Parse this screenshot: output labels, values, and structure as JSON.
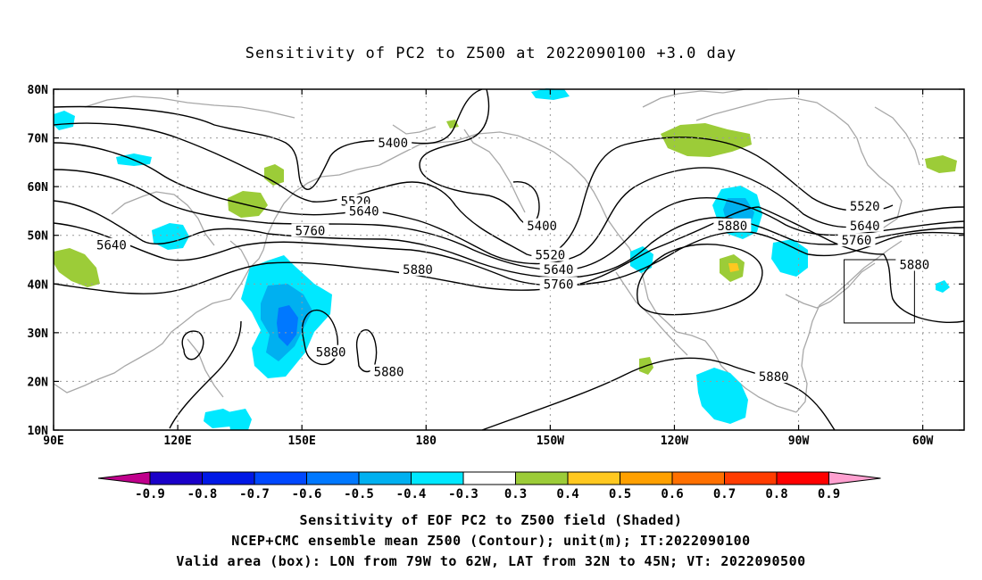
{
  "title": "Sensitivity of PC2 to Z500 at 2022090100 +3.0 day",
  "lat_labels": [
    "80N",
    "70N",
    "60N",
    "50N",
    "40N",
    "30N",
    "20N",
    "10N"
  ],
  "lon_labels": [
    "90E",
    "120E",
    "150E",
    "180",
    "150W",
    "120W",
    "90W",
    "60W"
  ],
  "contour_labels": [
    {
      "text": "5400",
      "lon": 172,
      "lat": 69
    },
    {
      "text": "5400",
      "lon": -152,
      "lat": 52
    },
    {
      "text": "5520",
      "lon": 163,
      "lat": 57
    },
    {
      "text": "5640",
      "lon": 165,
      "lat": 55
    },
    {
      "text": "5640",
      "lon": 104,
      "lat": 48
    },
    {
      "text": "5760",
      "lon": 152,
      "lat": 51
    },
    {
      "text": "5880",
      "lon": 178,
      "lat": 43
    },
    {
      "text": "5520",
      "lon": -150,
      "lat": 46
    },
    {
      "text": "5640",
      "lon": -148,
      "lat": 43
    },
    {
      "text": "5760",
      "lon": -148,
      "lat": 40
    },
    {
      "text": "5880",
      "lon": -106,
      "lat": 52
    },
    {
      "text": "5520",
      "lon": -74,
      "lat": 56
    },
    {
      "text": "5640",
      "lon": -74,
      "lat": 52
    },
    {
      "text": "5760",
      "lon": -76,
      "lat": 49
    },
    {
      "text": "5880",
      "lon": -62,
      "lat": 44
    },
    {
      "text": "5880",
      "lon": 157,
      "lat": 26
    },
    {
      "text": "5880",
      "lon": 171,
      "lat": 22
    },
    {
      "text": "5880",
      "lon": -96,
      "lat": 21
    }
  ],
  "valid_box": {
    "lon_min": -79,
    "lon_max": -62,
    "lat_min": 32,
    "lat_max": 45
  },
  "colorbar": {
    "labels": [
      "-0.9",
      "-0.8",
      "-0.7",
      "-0.6",
      "-0.5",
      "-0.4",
      "-0.3",
      "0.3",
      "0.4",
      "0.5",
      "0.6",
      "0.7",
      "0.8",
      "0.9"
    ],
    "colors": [
      "#1a00c8",
      "#0018e6",
      "#0048ff",
      "#0078ff",
      "#00b0f0",
      "#00e8ff",
      "#ffffff",
      "#9ccc38",
      "#ffc820",
      "#ffa000",
      "#ff7000",
      "#ff3c00",
      "#ff0000"
    ],
    "low_end_color": "#c0008c",
    "high_end_color": "#ffa0d0"
  },
  "captions": [
    "Sensitivity of EOF PC2 to Z500 field (Shaded)",
    "NCEP+CMC ensemble mean Z500 (Contour); unit(m); IT:2022090100",
    "Valid area (box): LON from 79W to 62W, LAT from 32N to 45N; VT: 2022090500"
  ]
}
